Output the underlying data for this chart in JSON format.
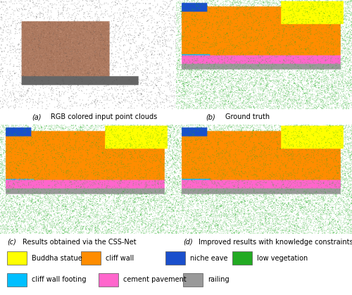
{
  "legend_items_row1": [
    {
      "label": "Buddha statue",
      "color": "#FFFF00"
    },
    {
      "label": "cliff wall",
      "color": "#FF8C00"
    },
    {
      "label": "niche eave",
      "color": "#1A4FCC"
    },
    {
      "label": "low vegetation",
      "color": "#22AA22"
    }
  ],
  "legend_items_row2": [
    {
      "label": "cliff wall footing",
      "color": "#00BFFF"
    },
    {
      "label": "cement pavement",
      "color": "#FF66CC"
    },
    {
      "label": "railing",
      "color": "#999999"
    }
  ],
  "captions": [
    {
      "label": "(a)",
      "text": "RGB colored input point clouds"
    },
    {
      "label": "(b)",
      "text": "Ground truth"
    },
    {
      "label": "(c)",
      "text": "Results obtained via the CSS-Net"
    },
    {
      "label": "(d)",
      "text": "Improved results with knowledge constraints"
    }
  ],
  "caption_fontsize": 7.0,
  "legend_fontsize": 7.0,
  "bg_color": "#FFFFFF",
  "figsize": [
    5.0,
    4.19
  ],
  "dpi": 100
}
